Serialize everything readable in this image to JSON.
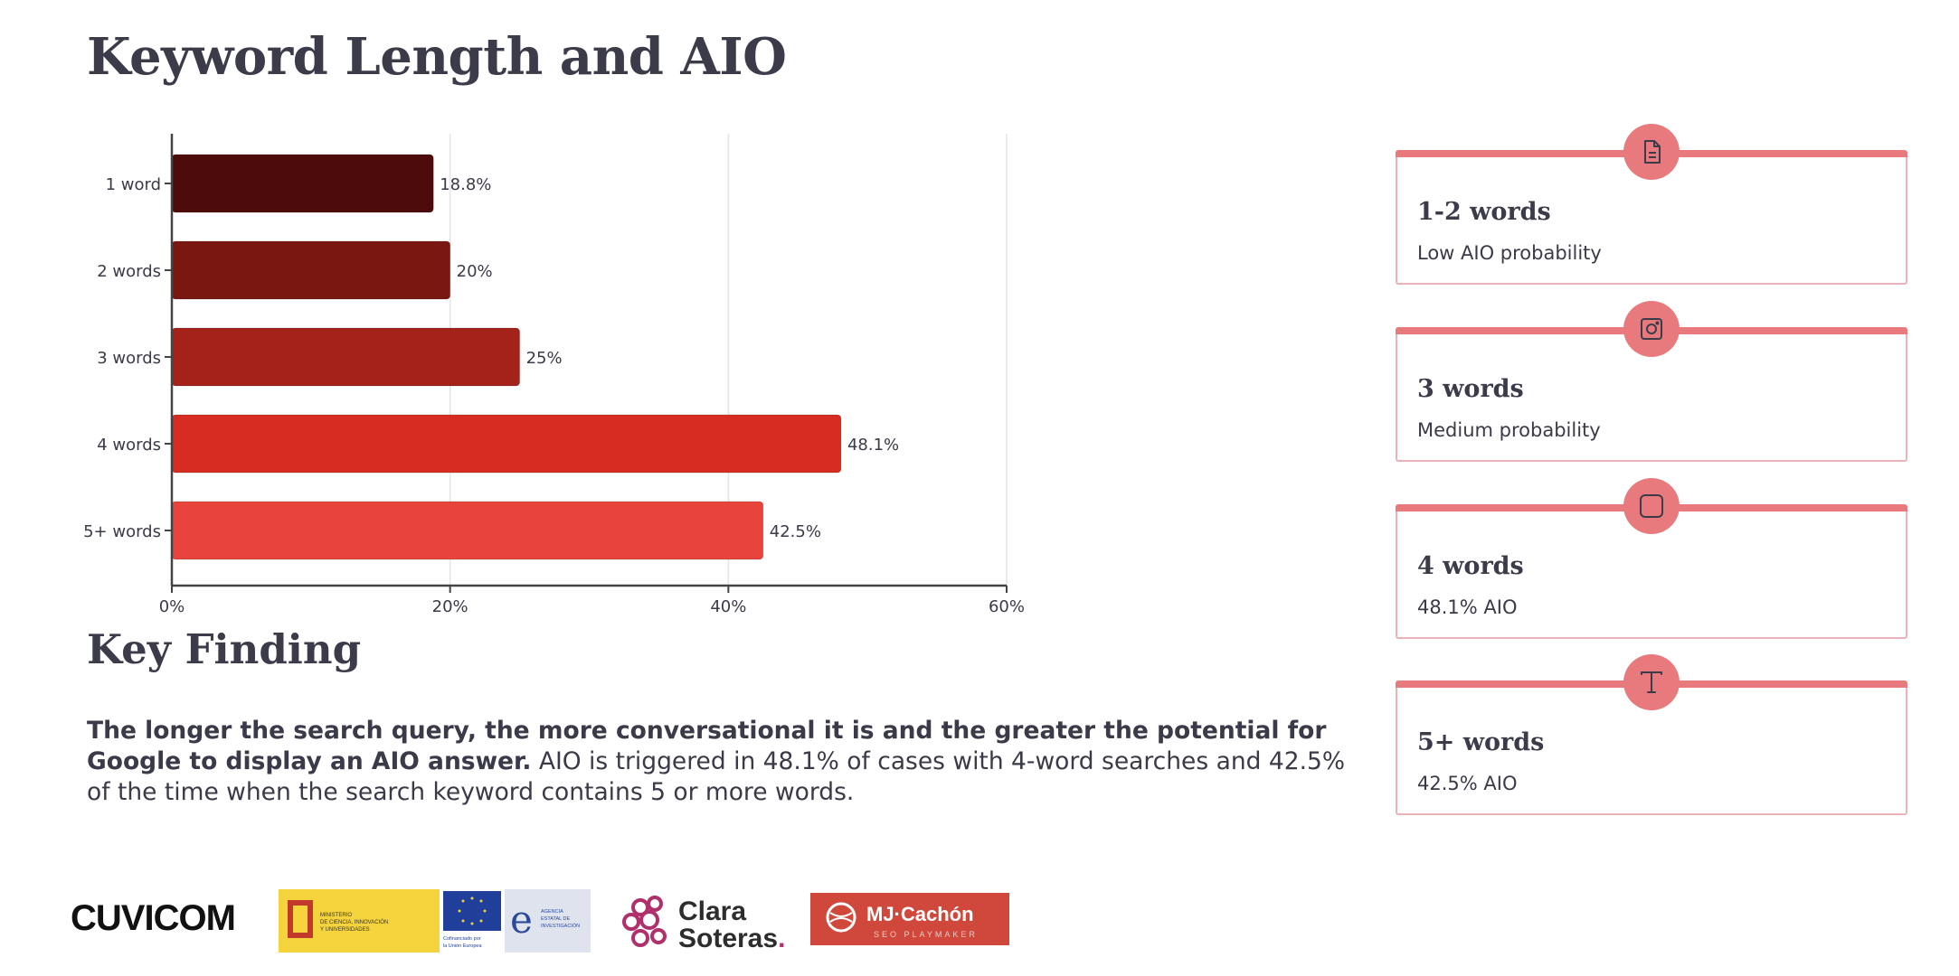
{
  "page": {
    "title": "Keyword Length and AIO"
  },
  "chart_data": {
    "type": "bar",
    "orientation": "horizontal",
    "categories": [
      "1 word",
      "2 words",
      "3 words",
      "4 words",
      "5+ words"
    ],
    "values": [
      18.8,
      20,
      25,
      48.1,
      42.5
    ],
    "value_labels": [
      "18.8%",
      "20%",
      "25%",
      "48.1%",
      "42.5%"
    ],
    "bar_colors": [
      "#4d0b0b",
      "#7a1711",
      "#a4221a",
      "#d62d22",
      "#e8443b"
    ],
    "xlim": [
      0,
      60
    ],
    "x_ticks": [
      0,
      20,
      40,
      60
    ],
    "x_tick_labels": [
      "0%",
      "20%",
      "40%",
      "60%"
    ],
    "grid": "vertical",
    "title": "",
    "xlabel": "",
    "ylabel": ""
  },
  "key_finding": {
    "title": "Key Finding",
    "bold_text": "The longer the search query, the more conversational it is and the greater the potential for Google to display an AIO answer.",
    "text": " AIO is triggered in 48.1% of cases with 4-word searches and 42.5% of the time when the search keyword contains 5 or more words."
  },
  "cards": [
    {
      "icon": "document-icon",
      "heading": "1-2 words",
      "sub": "Low AIO probability"
    },
    {
      "icon": "camera-icon",
      "heading": "3 words",
      "sub": "Medium probability"
    },
    {
      "icon": "square-icon",
      "heading": "4 words",
      "sub": "48.1% AIO"
    },
    {
      "icon": "text-icon",
      "heading": "5+ words",
      "sub": "42.5% AIO"
    }
  ],
  "colors": {
    "accent": "#e8797c",
    "card_border": "#e9b3b7",
    "heading": "#3b3b4a"
  },
  "logos": {
    "cuvicom": "CUVICOM",
    "gov_ministry": "MINISTERIO DE CIENCIA, INNOVACIÓN Y UNIVERSIDADES",
    "gov_eu": "Cofinanciado por la Unión Europea",
    "gov_agency": "AGENCIA ESTATAL DE INVESTIGACIÓN",
    "clara_line1": "Clara",
    "clara_line2": "Soteras.",
    "mj_name": "MJ·Cachón",
    "mj_tagline": "SEO PLAYMAKER"
  }
}
